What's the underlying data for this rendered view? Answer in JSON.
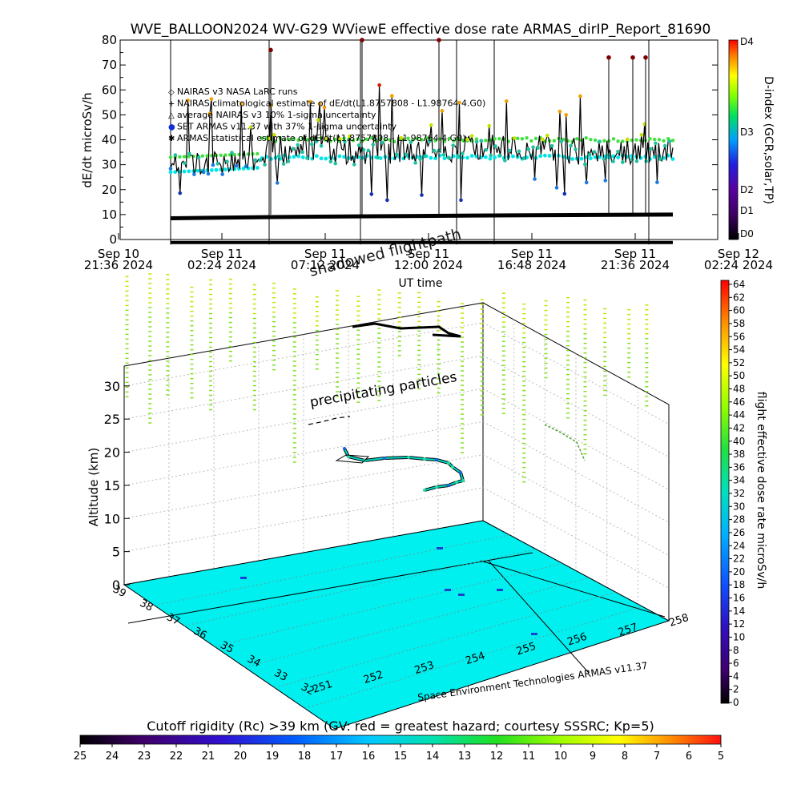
{
  "chart_data": [
    {
      "type": "scatter",
      "title": "WVE_BALLOON2024 WV-G29 WViewE effective dose rate ARMAS_dirIP_Report_81690",
      "xlabel": "UT time",
      "ylabel": "dE/dt microSv/h",
      "ylim": [
        0,
        80
      ],
      "y_ticks": [
        0,
        10,
        20,
        30,
        40,
        50,
        60,
        70,
        80
      ],
      "x_ticks": [
        {
          "line1": "Sep 10",
          "line2": "21:36 2024"
        },
        {
          "line1": "Sep 11",
          "line2": "02:24 2024"
        },
        {
          "line1": "Sep 11",
          "line2": "07:12 2024"
        },
        {
          "line1": "Sep 11",
          "line2": "12:00 2024"
        },
        {
          "line1": "Sep 11",
          "line2": "16:48 2024"
        },
        {
          "line1": "Sep 11",
          "line2": "21:36 2024"
        },
        {
          "line1": "Sep 12",
          "line2": "02:24 2024"
        }
      ],
      "legend": [
        "NAIRAS v3 NASA LaRC runs",
        "NAIRAS climatological estimate of dE/dt(L1.8757808 - L1.98764 4.G0)",
        "average NAIRAS v3 10% 1-sigma uncertainty",
        "SET ARMAS v11.37 with 37% 1-sigma uncertainty",
        "ARMAS statistical estimate of dE/dt(L1.8757808 - L1.98764 4.G0)"
      ],
      "legend_position": "upper-left",
      "annotations": [
        "shadowed flightpath"
      ],
      "right_colorbar": {
        "label": "D-index (GCR,solar,TP)",
        "ticks": [
          "D4",
          "D3",
          "D2",
          "D1",
          "D0"
        ]
      },
      "series": [
        {
          "name": "NAIRAS climatological estimate of dE/dt(L1.8757808 - L1.98764 4.G0)",
          "x_fraction": [
            0.0,
            0.2,
            0.4,
            0.6,
            0.8,
            1.0
          ],
          "values": [
            8.5,
            9.0,
            9.3,
            9.6,
            9.8,
            10.0
          ]
        },
        {
          "name": "average NAIRAS v3 10% 1-sigma uncertainty",
          "level_a": 33,
          "level_b": 40
        },
        {
          "name": "SET ARMAS v11.37 with 37% 1-sigma uncertainty",
          "range": [
            8,
            76
          ]
        }
      ]
    },
    {
      "type": "scatter",
      "zlabel": "Altitude (km)",
      "z_ticks": [
        0,
        5,
        10,
        15,
        20,
        25,
        30
      ],
      "lat_ticks": [
        "32",
        "33",
        "34",
        "35",
        "36",
        "37",
        "38",
        "39"
      ],
      "lon_ticks": [
        "251",
        "252",
        "253",
        "254",
        "255",
        "256",
        "257",
        "258"
      ],
      "annotations": [
        "precipitating particles"
      ],
      "credit": "Space Environment Technologies ARMAS v11.37",
      "right_colorbar": {
        "label": "flight effective dose rate microSv/h",
        "ticks": [
          "64",
          "62",
          "60",
          "58",
          "56",
          "54",
          "52",
          "50",
          "48",
          "46",
          "44",
          "42",
          "40",
          "38",
          "36",
          "34",
          "32",
          "30",
          "28",
          "26",
          "24",
          "22",
          "20",
          "18",
          "16",
          "14",
          "12",
          "10",
          "8",
          "6",
          "4",
          "2",
          "0"
        ]
      },
      "bottom_colorbar": {
        "title": "Cutoff rigidity (Rc) >39 km (GV: red = greatest hazard; courtesy SSSRC; Kp=5)",
        "ticks": [
          "25",
          "24",
          "23",
          "22",
          "21",
          "20",
          "19",
          "18",
          "17",
          "16",
          "15",
          "14",
          "13",
          "12",
          "11",
          "10",
          "9",
          "8",
          "7",
          "6",
          "5"
        ]
      }
    }
  ]
}
